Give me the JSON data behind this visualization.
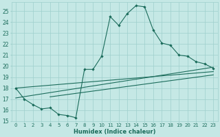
{
  "xlabel": "Humidex (Indice chaleur)",
  "xlim": [
    -0.5,
    23.5
  ],
  "ylim": [
    15,
    25.8
  ],
  "yticks": [
    15,
    16,
    17,
    18,
    19,
    20,
    21,
    22,
    23,
    24,
    25
  ],
  "xticks": [
    0,
    1,
    2,
    3,
    4,
    5,
    6,
    7,
    8,
    9,
    10,
    11,
    12,
    13,
    14,
    15,
    16,
    17,
    18,
    19,
    20,
    21,
    22,
    23
  ],
  "bg_color": "#c5e8e5",
  "line_color": "#1a6b5a",
  "grid_color": "#9ecfcc",
  "main_curve": [
    [
      0,
      18.0
    ],
    [
      1,
      17.0
    ],
    [
      2,
      16.5
    ],
    [
      3,
      16.1
    ],
    [
      4,
      16.2
    ],
    [
      5,
      15.6
    ],
    [
      6,
      15.5
    ],
    [
      7,
      15.3
    ],
    [
      8,
      19.7
    ],
    [
      9,
      19.7
    ],
    [
      10,
      20.9
    ],
    [
      11,
      24.5
    ],
    [
      12,
      23.7
    ],
    [
      13,
      24.8
    ],
    [
      14,
      25.5
    ],
    [
      15,
      25.4
    ],
    [
      16,
      23.3
    ],
    [
      17,
      22.1
    ],
    [
      18,
      21.9
    ],
    [
      19,
      21.0
    ],
    [
      20,
      20.9
    ],
    [
      21,
      20.4
    ],
    [
      22,
      20.2
    ],
    [
      23,
      19.8
    ]
  ],
  "line2": [
    [
      0,
      18.0
    ],
    [
      23,
      19.5
    ]
  ],
  "line3": [
    [
      0,
      17.1
    ],
    [
      23,
      19.9
    ]
  ],
  "line4": [
    [
      4,
      17.2
    ],
    [
      23,
      19.2
    ]
  ]
}
